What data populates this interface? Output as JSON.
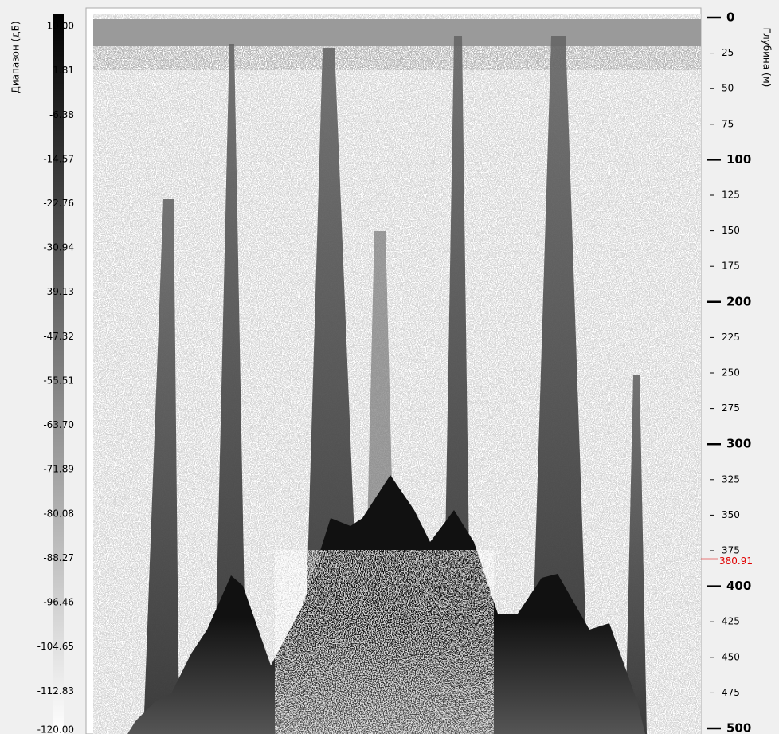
{
  "colorbar": {
    "label": "Диапазон (дБ)",
    "lim": [
      10,
      -120
    ],
    "ticks": [
      {
        "value": 10,
        "label": "10.00"
      },
      1.81,
      -6.38,
      -14.57,
      -22.76,
      -30.94,
      -39.13,
      -47.32,
      -55.51,
      {
        "value": -63.7,
        "label": "-63.70"
      },
      -71.89,
      -80.08,
      -88.27,
      -96.46,
      -104.65,
      -112.83,
      {
        "value": -120,
        "label": "-120.00"
      }
    ]
  },
  "depth_axis": {
    "label": "Глубина (м)",
    "lim": [
      0,
      500
    ],
    "major_ticks": [
      0,
      100,
      200,
      300,
      400,
      500
    ],
    "minor_ticks": [
      25,
      50,
      75,
      125,
      150,
      175,
      225,
      250,
      275,
      325,
      350,
      375,
      425,
      450,
      475
    ]
  },
  "marker": {
    "value": 380.91
  }
}
